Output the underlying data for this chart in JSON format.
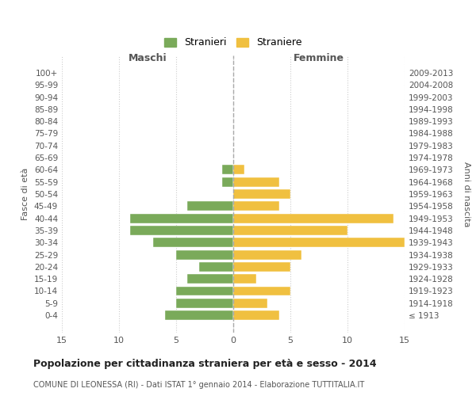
{
  "age_groups": [
    "100+",
    "95-99",
    "90-94",
    "85-89",
    "80-84",
    "75-79",
    "70-74",
    "65-69",
    "60-64",
    "55-59",
    "50-54",
    "45-49",
    "40-44",
    "35-39",
    "30-34",
    "25-29",
    "20-24",
    "15-19",
    "10-14",
    "5-9",
    "0-4"
  ],
  "birth_years": [
    "≤ 1913",
    "1914-1918",
    "1919-1923",
    "1924-1928",
    "1929-1933",
    "1934-1938",
    "1939-1943",
    "1944-1948",
    "1949-1953",
    "1954-1958",
    "1959-1963",
    "1964-1968",
    "1969-1973",
    "1974-1978",
    "1979-1983",
    "1984-1988",
    "1989-1993",
    "1994-1998",
    "1999-2003",
    "2004-2008",
    "2009-2013"
  ],
  "maschi": [
    0,
    0,
    0,
    0,
    0,
    0,
    0,
    0,
    1,
    1,
    0,
    4,
    9,
    9,
    7,
    5,
    3,
    4,
    5,
    5,
    6
  ],
  "femmine": [
    0,
    0,
    0,
    0,
    0,
    0,
    0,
    0,
    1,
    4,
    5,
    4,
    14,
    10,
    15,
    6,
    5,
    2,
    5,
    3,
    4
  ],
  "maschi_color": "#7aaa5a",
  "femmine_color": "#f0c040",
  "title": "Popolazione per cittadinanza straniera per età e sesso - 2014",
  "subtitle": "COMUNE DI LEONESSA (RI) - Dati ISTAT 1° gennaio 2014 - Elaborazione TUTTITALIA.IT",
  "xlabel_left": "Maschi",
  "xlabel_right": "Femmine",
  "ylabel_left": "Fasce di età",
  "ylabel_right": "Anni di nascita",
  "legend_stranieri": "Stranieri",
  "legend_straniere": "Straniere",
  "xlim": 15,
  "background_color": "#ffffff",
  "grid_color": "#cccccc",
  "bar_edge_color": "#ffffff"
}
